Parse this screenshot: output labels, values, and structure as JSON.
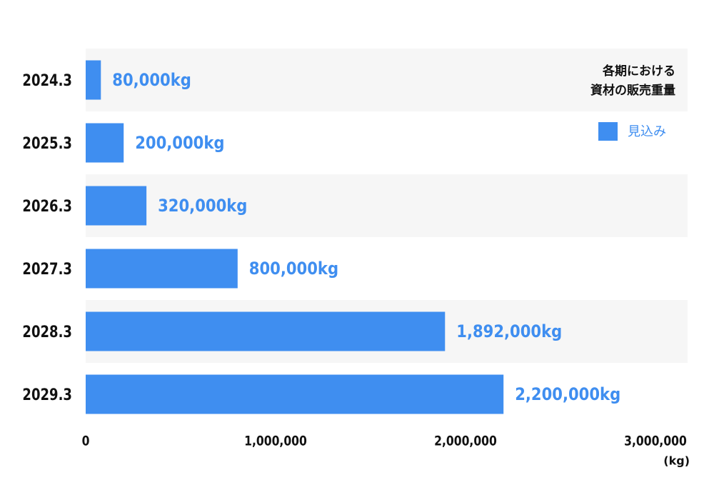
{
  "chart_data": {
    "type": "bar",
    "orientation": "horizontal",
    "title": [
      "各期における",
      "資材の販売重量"
    ],
    "categories": [
      "2024.3",
      "2025.3",
      "2026.3",
      "2027.3",
      "2028.3",
      "2029.3"
    ],
    "series": [
      {
        "name": "見込み",
        "color": "#3f8ef0",
        "values": [
          80000,
          200000,
          320000,
          800000,
          1892000,
          2200000
        ],
        "value_labels": [
          "80,000kg",
          "200,000kg",
          "320,000kg",
          "800,000kg",
          "1,892,000kg",
          "2,200,000kg"
        ]
      }
    ],
    "xlim": [
      0,
      3000000
    ],
    "xticks": [
      0,
      {
        "value": 1000000,
        "label": "1,000,000"
      },
      {
        "value": 2000000,
        "label": "2,000,000"
      },
      {
        "value": 3000000,
        "label": "3,000,000"
      }
    ],
    "x_label": "(kg)"
  }
}
